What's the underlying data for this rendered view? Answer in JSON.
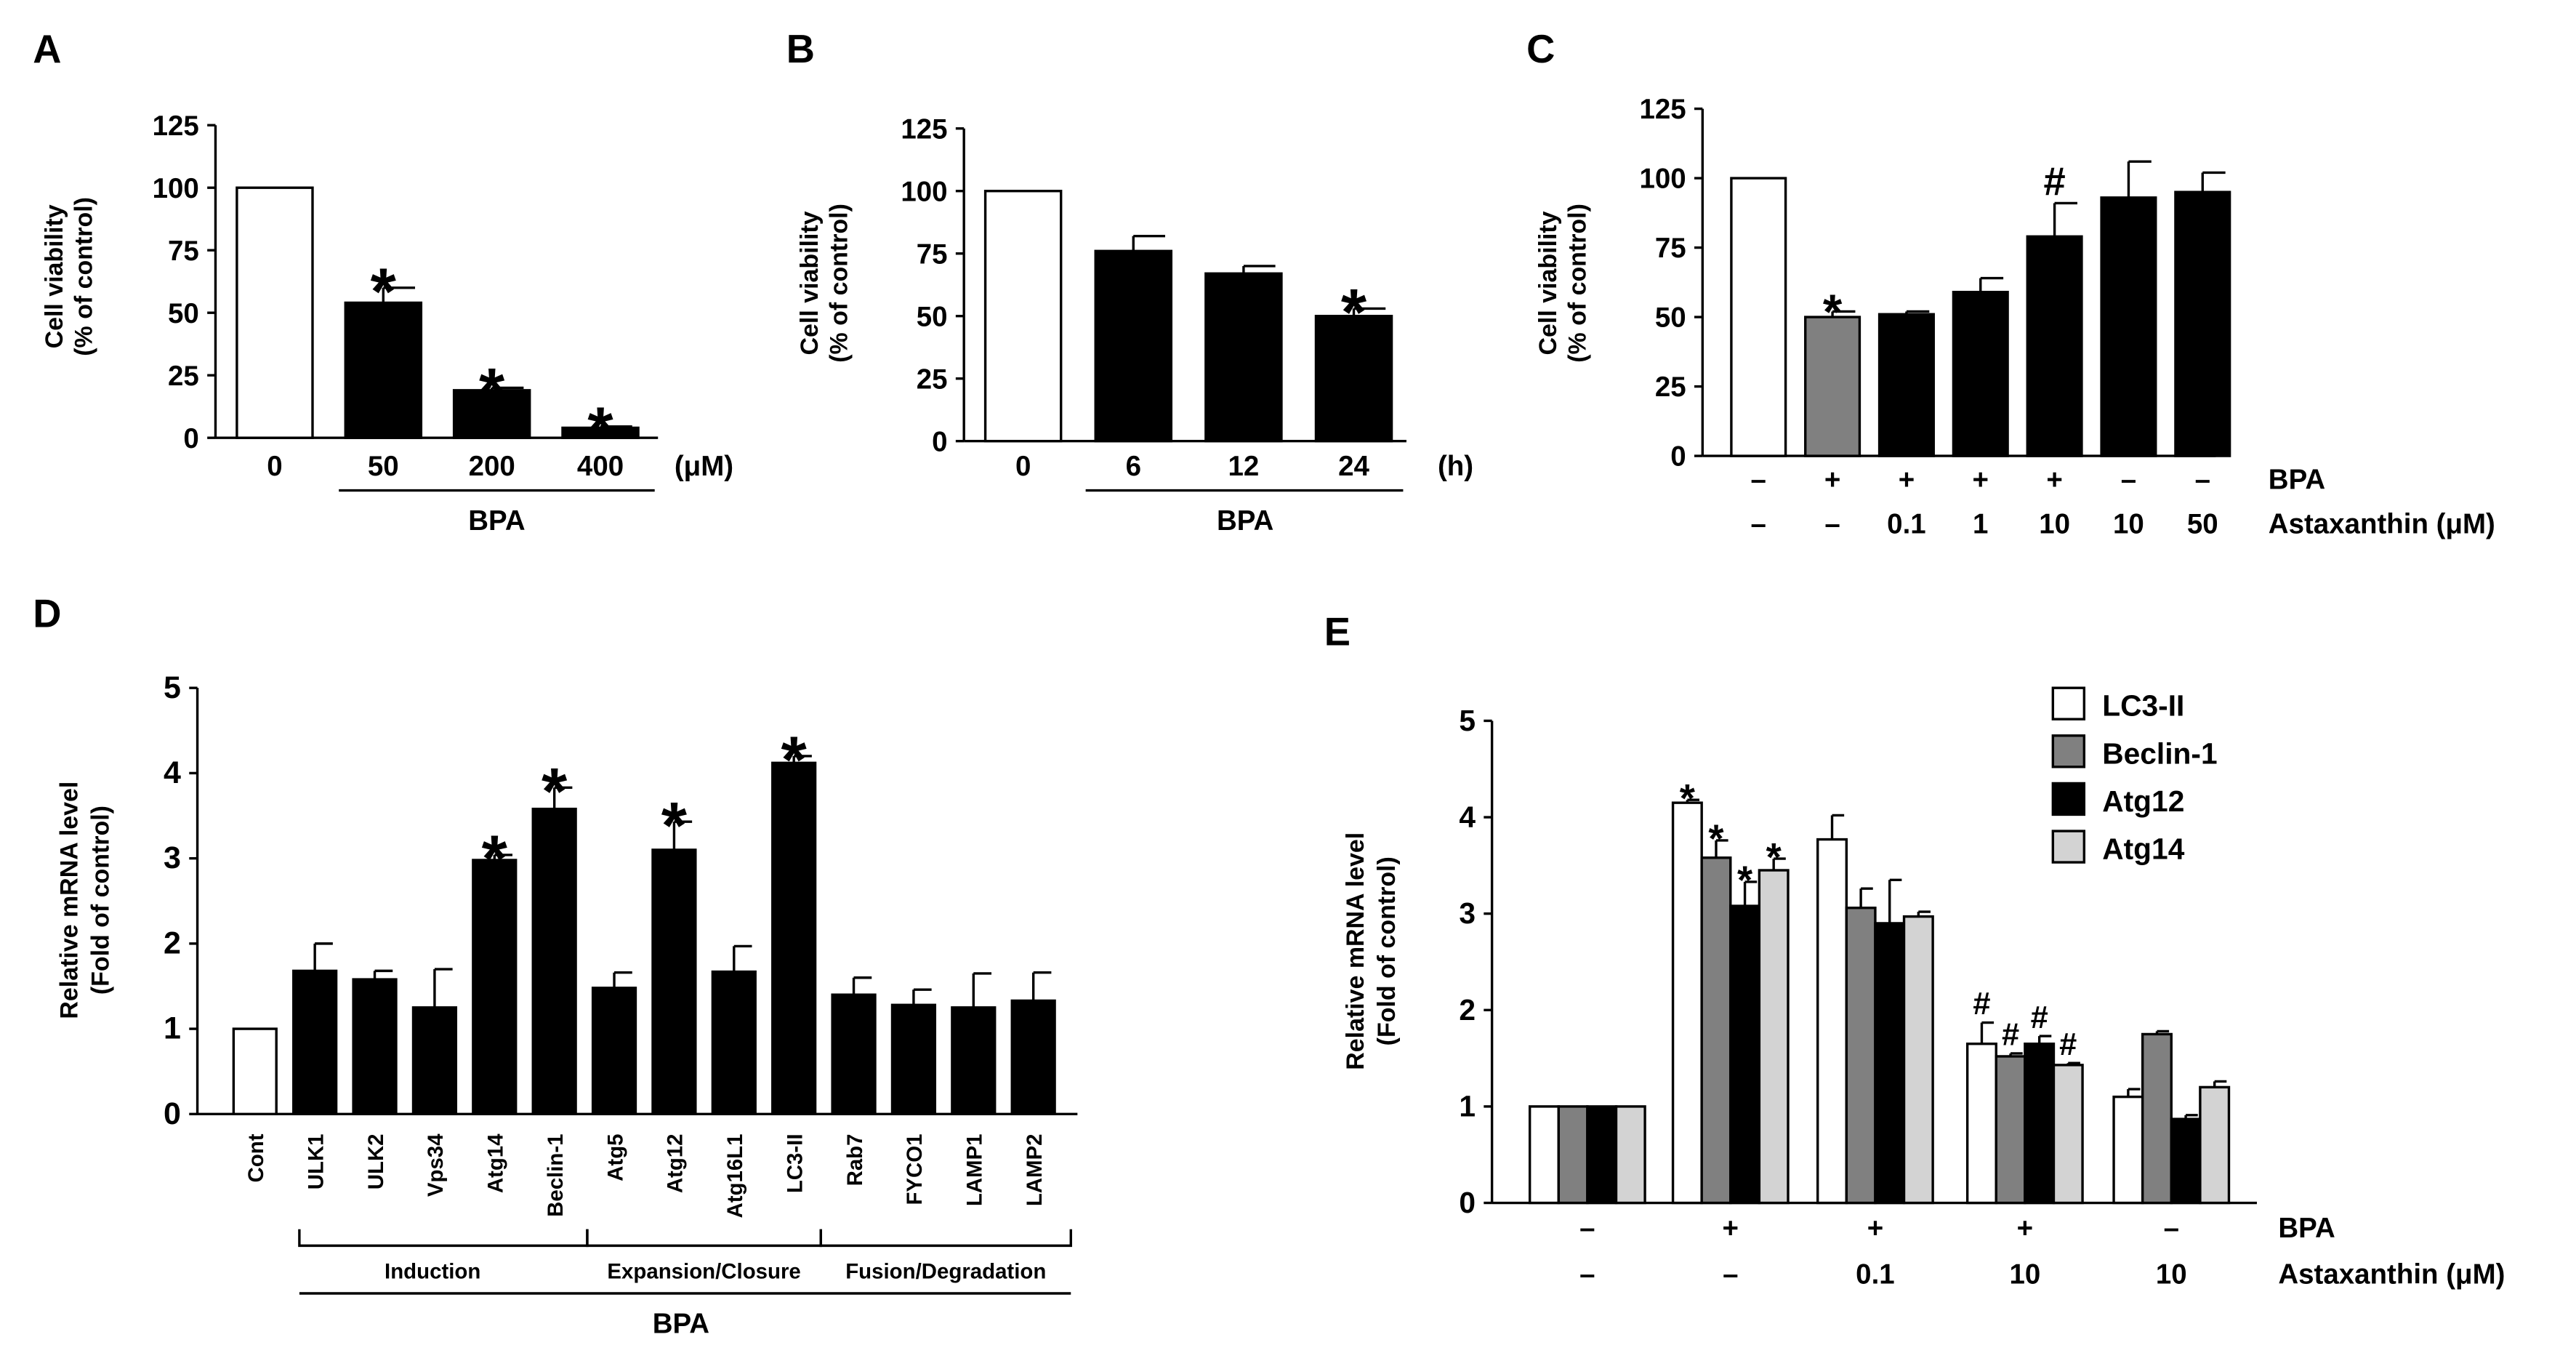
{
  "colors": {
    "white": "#ffffff",
    "gray": "#808080",
    "black": "#000000",
    "light": "#d3d3d3",
    "stroke": "#000000"
  },
  "chart_data": [
    {
      "type": "bar",
      "panel": "A",
      "ylabel_line1": "Cell viability",
      "ylabel_line2": "(% of control)",
      "ylim": [
        0,
        125
      ],
      "yticks": [
        0,
        25,
        50,
        75,
        100,
        125
      ],
      "categories": [
        "0",
        "50",
        "200",
        "400"
      ],
      "values": [
        100,
        54,
        19,
        4
      ],
      "errors": [
        0,
        6,
        1,
        0.5
      ],
      "fills": [
        "white",
        "black",
        "black",
        "black"
      ],
      "marks": [
        "",
        "*",
        "*",
        "*"
      ],
      "unit": "(μM)",
      "group_label": "BPA"
    },
    {
      "type": "bar",
      "panel": "B",
      "ylabel_line1": "Cell viability",
      "ylabel_line2": "(% of control)",
      "ylim": [
        0,
        125
      ],
      "yticks": [
        0,
        25,
        50,
        75,
        100,
        125
      ],
      "categories": [
        "0",
        "6",
        "12",
        "24"
      ],
      "values": [
        100,
        76,
        67,
        50
      ],
      "errors": [
        0,
        6,
        3,
        3
      ],
      "fills": [
        "white",
        "black",
        "black",
        "black"
      ],
      "marks": [
        "",
        "",
        "",
        "*"
      ],
      "unit": "(h)",
      "group_label": "BPA"
    },
    {
      "type": "bar",
      "panel": "C",
      "ylabel_line1": "Cell viability",
      "ylabel_line2": "(% of control)",
      "ylim": [
        0,
        125
      ],
      "yticks": [
        0,
        25,
        50,
        75,
        100,
        125
      ],
      "row1": [
        "–",
        "+",
        "+",
        "+",
        "+",
        "–",
        "–"
      ],
      "row2": [
        "–",
        "–",
        "0.1",
        "1",
        "10",
        "10",
        "50"
      ],
      "row1_label": "BPA",
      "row2_label": "Astaxanthin (μM)",
      "values": [
        100,
        50,
        51,
        59,
        79,
        93,
        95
      ],
      "errors": [
        0,
        2,
        1,
        5,
        12,
        13,
        7
      ],
      "fills": [
        "white",
        "gray",
        "black",
        "black",
        "black",
        "black",
        "black"
      ],
      "marks": [
        "",
        "*",
        "",
        "",
        "#",
        "",
        ""
      ]
    },
    {
      "type": "bar",
      "panel": "D",
      "ylabel_line1": "Relative mRNA level",
      "ylabel_line2": "(Fold of control)",
      "ylim": [
        0,
        5
      ],
      "yticks": [
        0,
        1,
        2,
        3,
        4,
        5
      ],
      "categories": [
        "Cont",
        "ULK1",
        "ULK2",
        "Vps34",
        "Atg14",
        "Beclin-1",
        "Atg5",
        "Atg12",
        "Atg16L1",
        "LC3-II",
        "Rab7",
        "FYCO1",
        "LAMP1",
        "LAMP2"
      ],
      "values": [
        1,
        1.68,
        1.58,
        1.25,
        2.98,
        3.58,
        1.48,
        3.1,
        1.67,
        4.12,
        1.4,
        1.28,
        1.25,
        1.33
      ],
      "errors": [
        0,
        0.32,
        0.1,
        0.45,
        0.06,
        0.25,
        0.18,
        0.33,
        0.3,
        0.08,
        0.2,
        0.18,
        0.4,
        0.33
      ],
      "fills": [
        "white",
        "black",
        "black",
        "black",
        "black",
        "black",
        "black",
        "black",
        "black",
        "black",
        "black",
        "black",
        "black",
        "black"
      ],
      "marks": [
        "",
        "",
        "",
        "",
        "*",
        "*",
        "",
        "*",
        "",
        "*",
        "",
        "",
        "",
        ""
      ],
      "groups": [
        "Induction",
        "Expansion/Closure",
        "Fusion/Degradation"
      ],
      "group_label": "BPA"
    },
    {
      "type": "bar",
      "panel": "E",
      "ylabel_line1": "Relative mRNA level",
      "ylabel_line2": "(Fold of control)",
      "ylim": [
        0,
        5
      ],
      "yticks": [
        0,
        1,
        2,
        3,
        4,
        5
      ],
      "row1": [
        "–",
        "+",
        "+",
        "+",
        "–"
      ],
      "row2": [
        "–",
        "–",
        "0.1",
        "10",
        "10"
      ],
      "row1_label": "BPA",
      "row2_label": "Astaxanthin (μM)",
      "series": [
        {
          "name": "LC3-II",
          "fill": "white",
          "values": [
            1,
            4.15,
            3.77,
            1.65,
            1.1
          ],
          "errors": [
            0,
            0.03,
            0.25,
            0.22,
            0.08
          ],
          "marks": [
            "",
            "*",
            "",
            "#",
            ""
          ]
        },
        {
          "name": "Beclin-1",
          "fill": "gray",
          "values": [
            1,
            3.58,
            3.06,
            1.52,
            1.75
          ],
          "errors": [
            0,
            0.18,
            0.2,
            0.03,
            0.03
          ],
          "marks": [
            "",
            "*",
            "",
            "#",
            ""
          ]
        },
        {
          "name": "Atg12",
          "fill": "black",
          "values": [
            1,
            3.08,
            2.9,
            1.65,
            0.87
          ],
          "errors": [
            0,
            0.25,
            0.45,
            0.08,
            0.04
          ],
          "marks": [
            "",
            "*",
            "",
            "#",
            ""
          ]
        },
        {
          "name": "Atg14",
          "fill": "light",
          "values": [
            1,
            3.45,
            2.97,
            1.43,
            1.2
          ],
          "errors": [
            0,
            0.12,
            0.05,
            0.02,
            0.06
          ],
          "marks": [
            "",
            "*",
            "",
            "#",
            ""
          ]
        }
      ]
    }
  ]
}
